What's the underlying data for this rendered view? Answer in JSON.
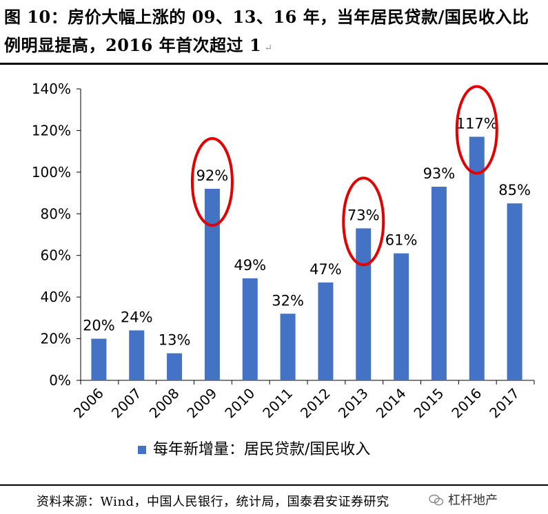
{
  "figure": {
    "title": "图 10：房价大幅上涨的 09、13、16 年，当年居民贷款/国民收入比例明显提高，2016 年首次超过 1",
    "paragraph_mark": "↵",
    "source": "资料来源：Wind，中国人民银行，统计局，国泰君安证券研究",
    "watermark": "杠杆地产"
  },
  "colors": {
    "bar": "#4472C4",
    "highlight_ellipse": "#E00000",
    "axis": "#000000"
  },
  "chart_data": {
    "type": "bar",
    "categories": [
      "2006",
      "2007",
      "2008",
      "2009",
      "2010",
      "2011",
      "2012",
      "2013",
      "2014",
      "2015",
      "2016",
      "2017"
    ],
    "series": [
      {
        "name": "每年新增量：居民贷款/国民收入",
        "values": [
          20,
          24,
          13,
          92,
          49,
          32,
          47,
          73,
          61,
          93,
          117,
          85
        ],
        "labels": [
          "20%",
          "24%",
          "13%",
          "92%",
          "49%",
          "32%",
          "47%",
          "73%",
          "61%",
          "93%",
          "117%",
          "85%"
        ]
      }
    ],
    "ylim": [
      0,
      140
    ],
    "yticks": [
      0,
      20,
      40,
      60,
      80,
      100,
      120,
      140
    ],
    "ytick_labels": [
      "0%",
      "20%",
      "40%",
      "60%",
      "80%",
      "100%",
      "120%",
      "140%"
    ],
    "highlighted_categories": [
      "2009",
      "2013",
      "2016"
    ],
    "legend_position": "bottom",
    "grid": false,
    "xlabel": "",
    "ylabel": ""
  }
}
